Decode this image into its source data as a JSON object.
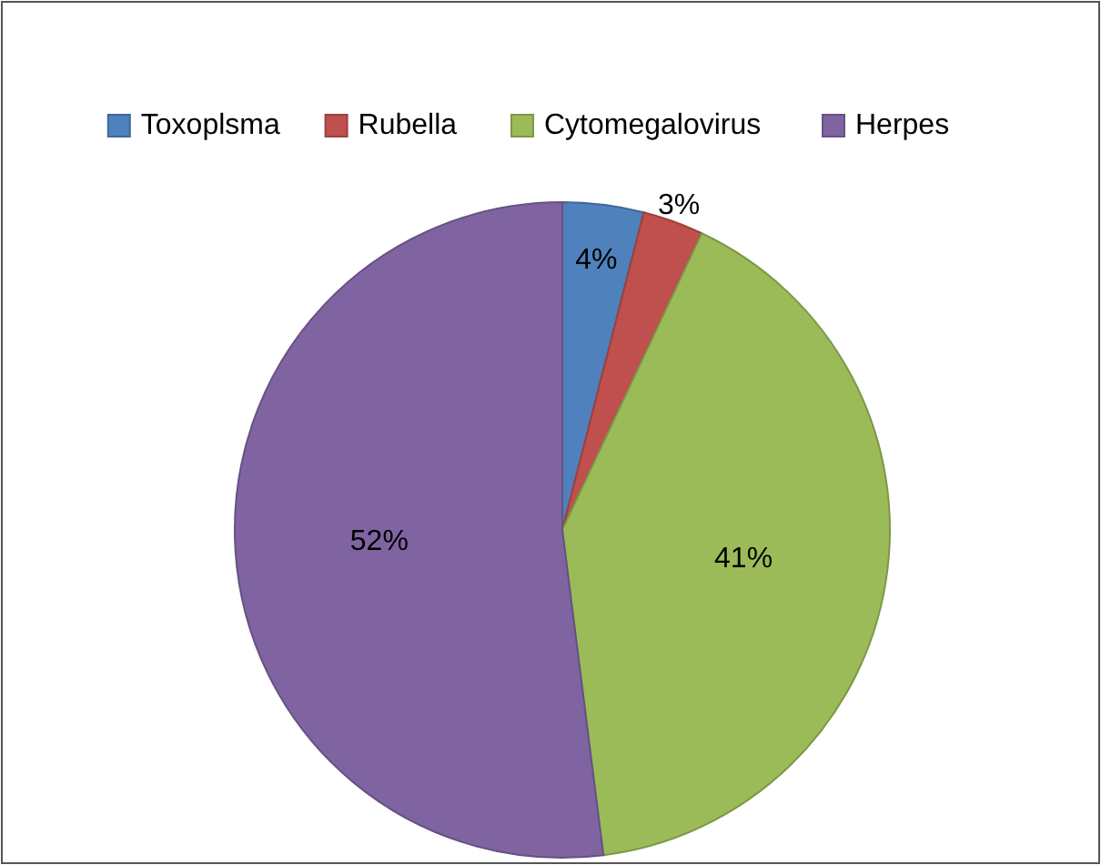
{
  "chart_data": {
    "type": "pie",
    "categories": [
      "Toxoplsma",
      "Rubella",
      "Cytomegalovirus",
      "Herpes"
    ],
    "values": [
      4,
      3,
      41,
      52
    ],
    "colors": [
      "#4f81bd",
      "#c0504d",
      "#9bbb59",
      "#8064a2"
    ],
    "value_labels": [
      "4%",
      "3%",
      "41%",
      "52%"
    ],
    "legend": "top"
  }
}
